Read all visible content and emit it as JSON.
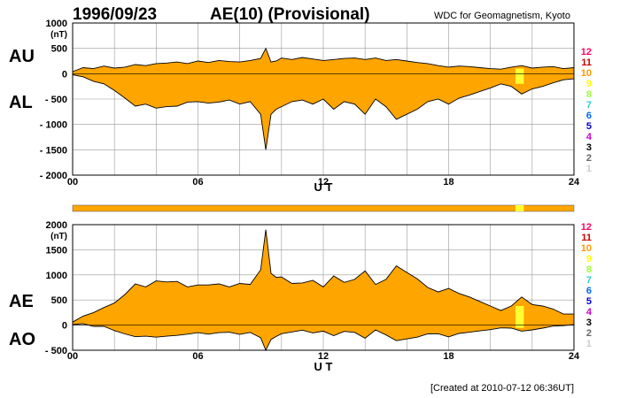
{
  "header": {
    "date": "1996/09/23",
    "title": "AE(10) (Provisional)",
    "source": "WDC for Geomagnetism, Kyoto"
  },
  "footer": {
    "created": "[Created at 2010-07-12 06:36UT]"
  },
  "level_scale": {
    "labels": [
      "12",
      "11",
      "10",
      "9",
      "8",
      "7",
      "6",
      "5",
      "4",
      "3",
      "2",
      "1"
    ],
    "colors": [
      "#ff0066",
      "#cc0000",
      "#ff9900",
      "#ffff00",
      "#99ff33",
      "#33cccc",
      "#0066ff",
      "#0000cc",
      "#cc00cc",
      "#000000",
      "#666666",
      "#cccccc"
    ]
  },
  "colors": {
    "fill": "#ffa500",
    "highlight": "#ffff33",
    "grid": "#999999"
  },
  "chart_data": [
    {
      "type": "area",
      "panel": "AU/AL",
      "side_labels": [
        "AU",
        "AL"
      ],
      "unit": "(nT)",
      "xlabel": "U T",
      "xticks": [
        "00",
        "06",
        "12",
        "18",
        "24"
      ],
      "xlim": [
        0,
        24
      ],
      "ylim": [
        -2000,
        1000
      ],
      "yticks": [
        "1000",
        "500",
        "0",
        "- 500",
        "- 1000",
        "- 1500",
        "- 2000"
      ],
      "x_hours": [
        0,
        0.5,
        1,
        1.5,
        2,
        2.5,
        3,
        3.5,
        4,
        4.5,
        5,
        5.5,
        6,
        6.5,
        7,
        7.5,
        8,
        8.5,
        9,
        9.25,
        9.5,
        9.75,
        10,
        10.5,
        11,
        11.5,
        12,
        12.5,
        13,
        13.5,
        14,
        14.5,
        15,
        15.5,
        16,
        16.5,
        17,
        17.5,
        18,
        18.5,
        19,
        19.5,
        20,
        20.5,
        21,
        21.5,
        22,
        22.5,
        23,
        23.5,
        24
      ],
      "series": [
        {
          "name": "AU",
          "values": [
            40,
            120,
            100,
            150,
            110,
            130,
            180,
            160,
            200,
            210,
            230,
            200,
            250,
            220,
            260,
            240,
            230,
            260,
            300,
            500,
            230,
            250,
            310,
            280,
            320,
            290,
            260,
            280,
            300,
            310,
            280,
            310,
            260,
            280,
            250,
            220,
            200,
            160,
            130,
            150,
            140,
            120,
            100,
            90,
            130,
            160,
            110,
            130,
            140,
            100,
            120
          ]
        },
        {
          "name": "AL",
          "values": [
            -20,
            -60,
            -150,
            -200,
            -330,
            -480,
            -640,
            -600,
            -680,
            -650,
            -640,
            -560,
            -550,
            -580,
            -560,
            -520,
            -600,
            -550,
            -800,
            -1500,
            -800,
            -700,
            -650,
            -550,
            -520,
            -600,
            -500,
            -700,
            -550,
            -600,
            -800,
            -500,
            -650,
            -900,
            -800,
            -700,
            -550,
            -500,
            -600,
            -480,
            -420,
            -350,
            -280,
            -200,
            -250,
            -400,
            -300,
            -250,
            -180,
            -120,
            -100
          ]
        }
      ]
    },
    {
      "type": "area",
      "panel": "AE/AO",
      "side_labels": [
        "AE",
        "AO"
      ],
      "unit": "(nT)",
      "xlabel": "U T",
      "xticks": [
        "00",
        "06",
        "12",
        "18",
        "24"
      ],
      "xlim": [
        0,
        24
      ],
      "ylim": [
        -500,
        2000
      ],
      "yticks": [
        "2000",
        "1500",
        "1000",
        "500",
        "0",
        "- 500"
      ],
      "x_hours": [
        0,
        0.5,
        1,
        1.5,
        2,
        2.5,
        3,
        3.5,
        4,
        4.5,
        5,
        5.5,
        6,
        6.5,
        7,
        7.5,
        8,
        8.5,
        9,
        9.25,
        9.5,
        9.75,
        10,
        10.5,
        11,
        11.5,
        12,
        12.5,
        13,
        13.5,
        14,
        14.5,
        15,
        15.5,
        16,
        16.5,
        17,
        17.5,
        18,
        18.5,
        19,
        19.5,
        20,
        20.5,
        21,
        21.5,
        22,
        22.5,
        23,
        23.5,
        24
      ],
      "series": [
        {
          "name": "AE",
          "values": [
            60,
            180,
            250,
            350,
            440,
            610,
            820,
            760,
            880,
            860,
            870,
            760,
            800,
            800,
            820,
            760,
            830,
            810,
            1100,
            1900,
            1030,
            950,
            960,
            830,
            840,
            890,
            760,
            980,
            850,
            910,
            1080,
            810,
            910,
            1180,
            1050,
            920,
            750,
            660,
            730,
            630,
            560,
            470,
            380,
            290,
            380,
            560,
            410,
            380,
            320,
            220,
            220
          ]
        },
        {
          "name": "AO",
          "values": [
            10,
            30,
            -25,
            -25,
            -110,
            -175,
            -230,
            -220,
            -240,
            -220,
            -205,
            -180,
            -150,
            -180,
            -150,
            -140,
            -185,
            -145,
            -250,
            -500,
            -285,
            -225,
            -170,
            -135,
            -100,
            -155,
            -120,
            -210,
            -125,
            -145,
            -260,
            -95,
            -195,
            -310,
            -275,
            -240,
            -175,
            -170,
            -235,
            -165,
            -140,
            -115,
            -90,
            -55,
            -60,
            -120,
            -95,
            -60,
            -20,
            -10,
            10
          ]
        }
      ]
    }
  ]
}
